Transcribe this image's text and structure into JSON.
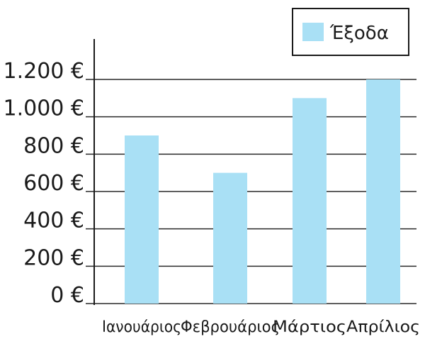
{
  "chart_data": {
    "type": "bar",
    "title": "",
    "xlabel": "",
    "ylabel": "",
    "categories": [
      "Ιανουάριος",
      "Φεβρουάριος",
      "Μάρτιος",
      "Απρίλιος"
    ],
    "series": [
      {
        "name": "Έξοδα",
        "values": [
          900,
          700,
          1100,
          1200
        ],
        "color": "#a9e0f5"
      }
    ],
    "y_ticks": [
      0,
      200,
      400,
      600,
      800,
      1000,
      1200
    ],
    "y_tick_labels": [
      "0 €",
      "200 €",
      "400 €",
      "600 €",
      "800 €",
      "1.000 €",
      "1.200 €"
    ],
    "ylim": [
      0,
      1200
    ],
    "grid": true,
    "legend_position": "top-right",
    "legend_label": "Έξοδα"
  }
}
